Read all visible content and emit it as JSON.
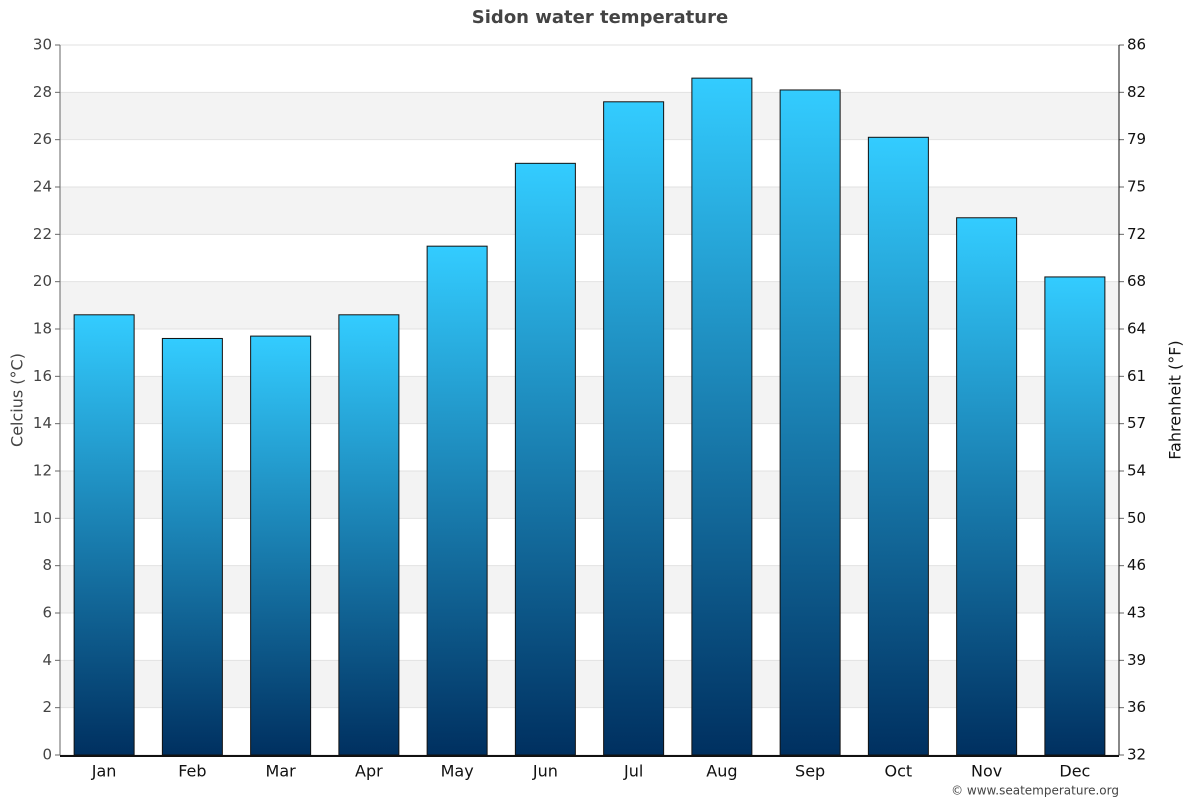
{
  "chart_data": {
    "type": "bar",
    "title": "Sidon water temperature",
    "categories": [
      "Jan",
      "Feb",
      "Mar",
      "Apr",
      "May",
      "Jun",
      "Jul",
      "Aug",
      "Sep",
      "Oct",
      "Nov",
      "Dec"
    ],
    "values": [
      18.6,
      17.6,
      17.7,
      18.6,
      21.5,
      25.0,
      27.6,
      28.6,
      28.1,
      26.1,
      22.7,
      20.2
    ],
    "color": "#1a8cc4",
    "ylabel": "Celcius (°C)",
    "y2label": "Fahrenheit (°F)",
    "ylim": [
      0,
      30
    ],
    "yticks": [
      0,
      2,
      4,
      6,
      8,
      10,
      12,
      14,
      16,
      18,
      20,
      22,
      24,
      26,
      28,
      30
    ],
    "y2lim": [
      32,
      86
    ],
    "y2ticks": [
      32,
      {
        "value": 35.6,
        "label": "36"
      },
      {
        "value": 39.2,
        "label": "39"
      },
      {
        "value": 42.8,
        "label": "43"
      },
      {
        "value": 46.4,
        "label": "46"
      },
      50,
      {
        "value": 53.6,
        "label": "54"
      },
      {
        "value": 57.2,
        "label": "57"
      },
      {
        "value": 60.8,
        "label": "61"
      },
      {
        "value": 64.4,
        "label": "64"
      },
      68,
      {
        "value": 71.6,
        "label": "72"
      },
      {
        "value": 75.2,
        "label": "75"
      },
      {
        "value": 78.8,
        "label": "79"
      },
      {
        "value": 82.4,
        "label": "82"
      },
      86
    ],
    "grid": true,
    "credit": "© www.seatemperature.org"
  }
}
